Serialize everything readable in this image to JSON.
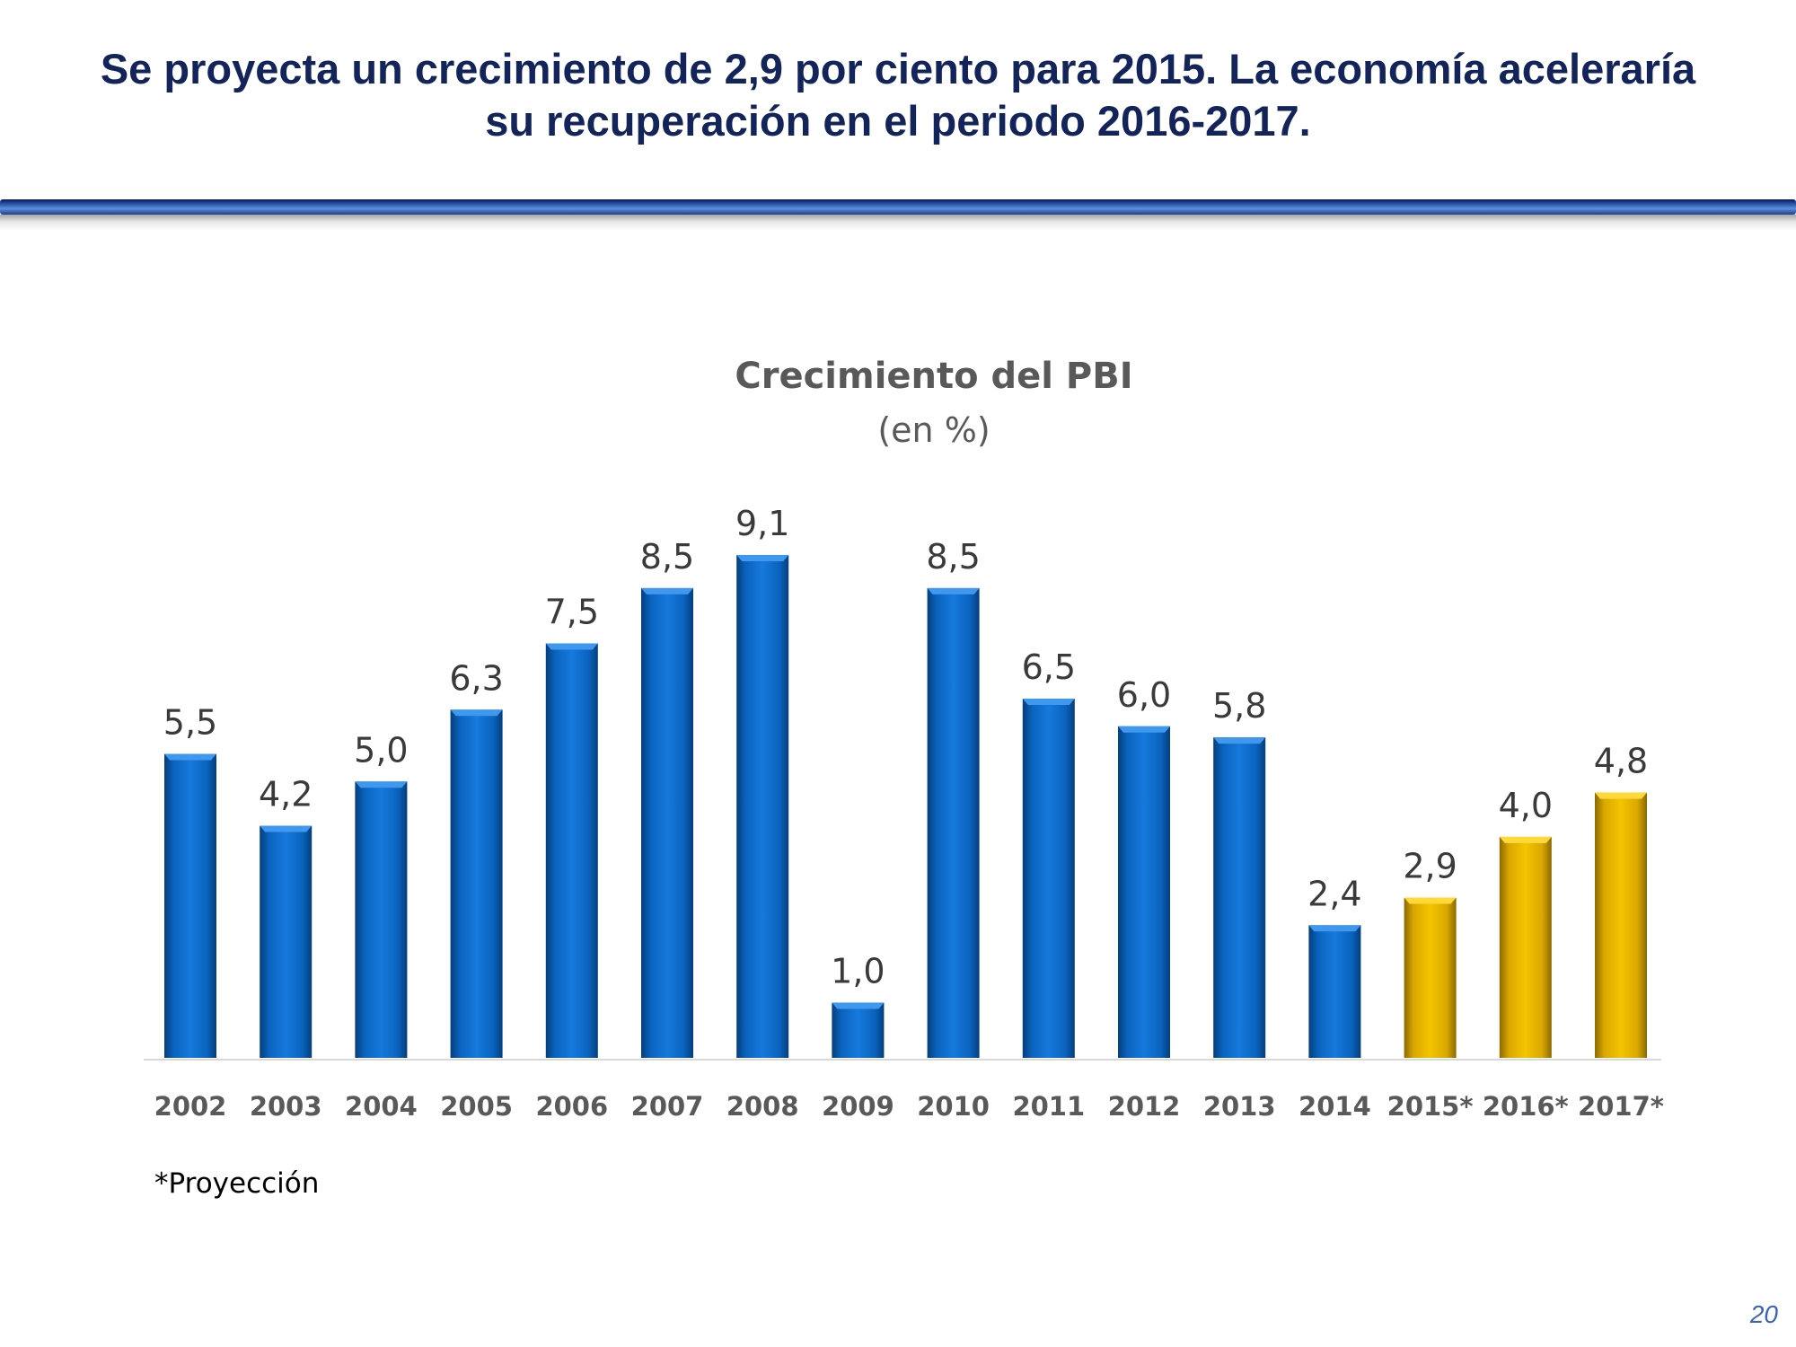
{
  "slide": {
    "headline_line1": "Se proyecta un crecimiento de 2,9 por ciento para 2015. La economía aceleraría",
    "headline_line2": "su recuperación en el periodo 2016-2017.",
    "footnote": "*Proyección",
    "page_number": "20"
  },
  "colors": {
    "headline": "#13245b",
    "actual_bar": "#0b6ac8",
    "projection_bar": "#eab800",
    "label_text": "#3a3a3a",
    "title_text": "#595959"
  },
  "chart_data": {
    "type": "bar",
    "title": "Crecimiento del PBI",
    "subtitle": "(en %)",
    "xlabel": "",
    "ylabel": "",
    "ylim": [
      0,
      9.1
    ],
    "grid": false,
    "legend": "none",
    "categories": [
      "2002",
      "2003",
      "2004",
      "2005",
      "2006",
      "2007",
      "2008",
      "2009",
      "2010",
      "2011",
      "2012",
      "2013",
      "2014",
      "2015*",
      "2016*",
      "2017*"
    ],
    "values": [
      5.5,
      4.2,
      5.0,
      6.3,
      7.5,
      8.5,
      9.1,
      1.0,
      8.5,
      6.5,
      6.0,
      5.8,
      2.4,
      2.9,
      4.0,
      4.8
    ],
    "value_labels": [
      "5,5",
      "4,2",
      "5,0",
      "6,3",
      "7,5",
      "8,5",
      "9,1",
      "1,0",
      "8,5",
      "6,5",
      "6,0",
      "5,8",
      "2,4",
      "2,9",
      "4,0",
      "4,8"
    ],
    "projection": [
      false,
      false,
      false,
      false,
      false,
      false,
      false,
      false,
      false,
      false,
      false,
      false,
      false,
      true,
      true,
      true
    ]
  }
}
